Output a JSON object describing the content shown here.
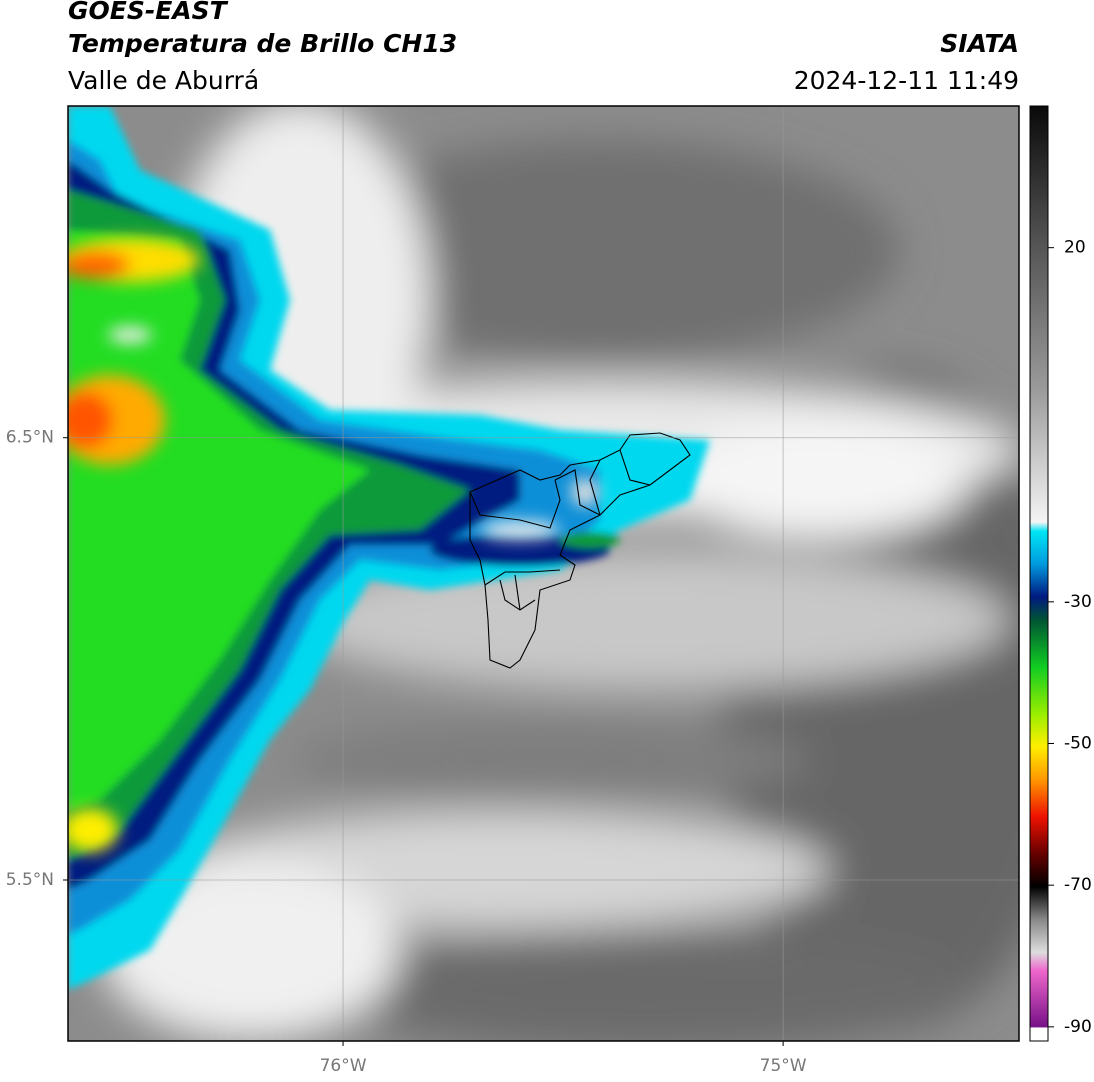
{
  "header": {
    "title": "GOES-EAST",
    "subtitle": "Temperatura de Brillo CH13",
    "region": "Valle de Aburrá",
    "source": "SIATA",
    "datetime": "2024-12-11 11:49"
  },
  "map": {
    "xlim": [
      -76.625,
      -74.464
    ],
    "ylim": [
      5.136,
      7.25
    ],
    "xticks": [
      {
        "value": -76,
        "label": "76°W"
      },
      {
        "value": -75,
        "label": "75°W"
      }
    ],
    "yticks": [
      {
        "value": 6.5,
        "label": "6.5°N"
      },
      {
        "value": 5.5,
        "label": "5.5°N"
      }
    ],
    "grid": true
  },
  "colorbar": {
    "lim": [
      -92,
      40
    ],
    "ticks": [
      20,
      -30,
      -50,
      -70,
      -90
    ]
  }
}
